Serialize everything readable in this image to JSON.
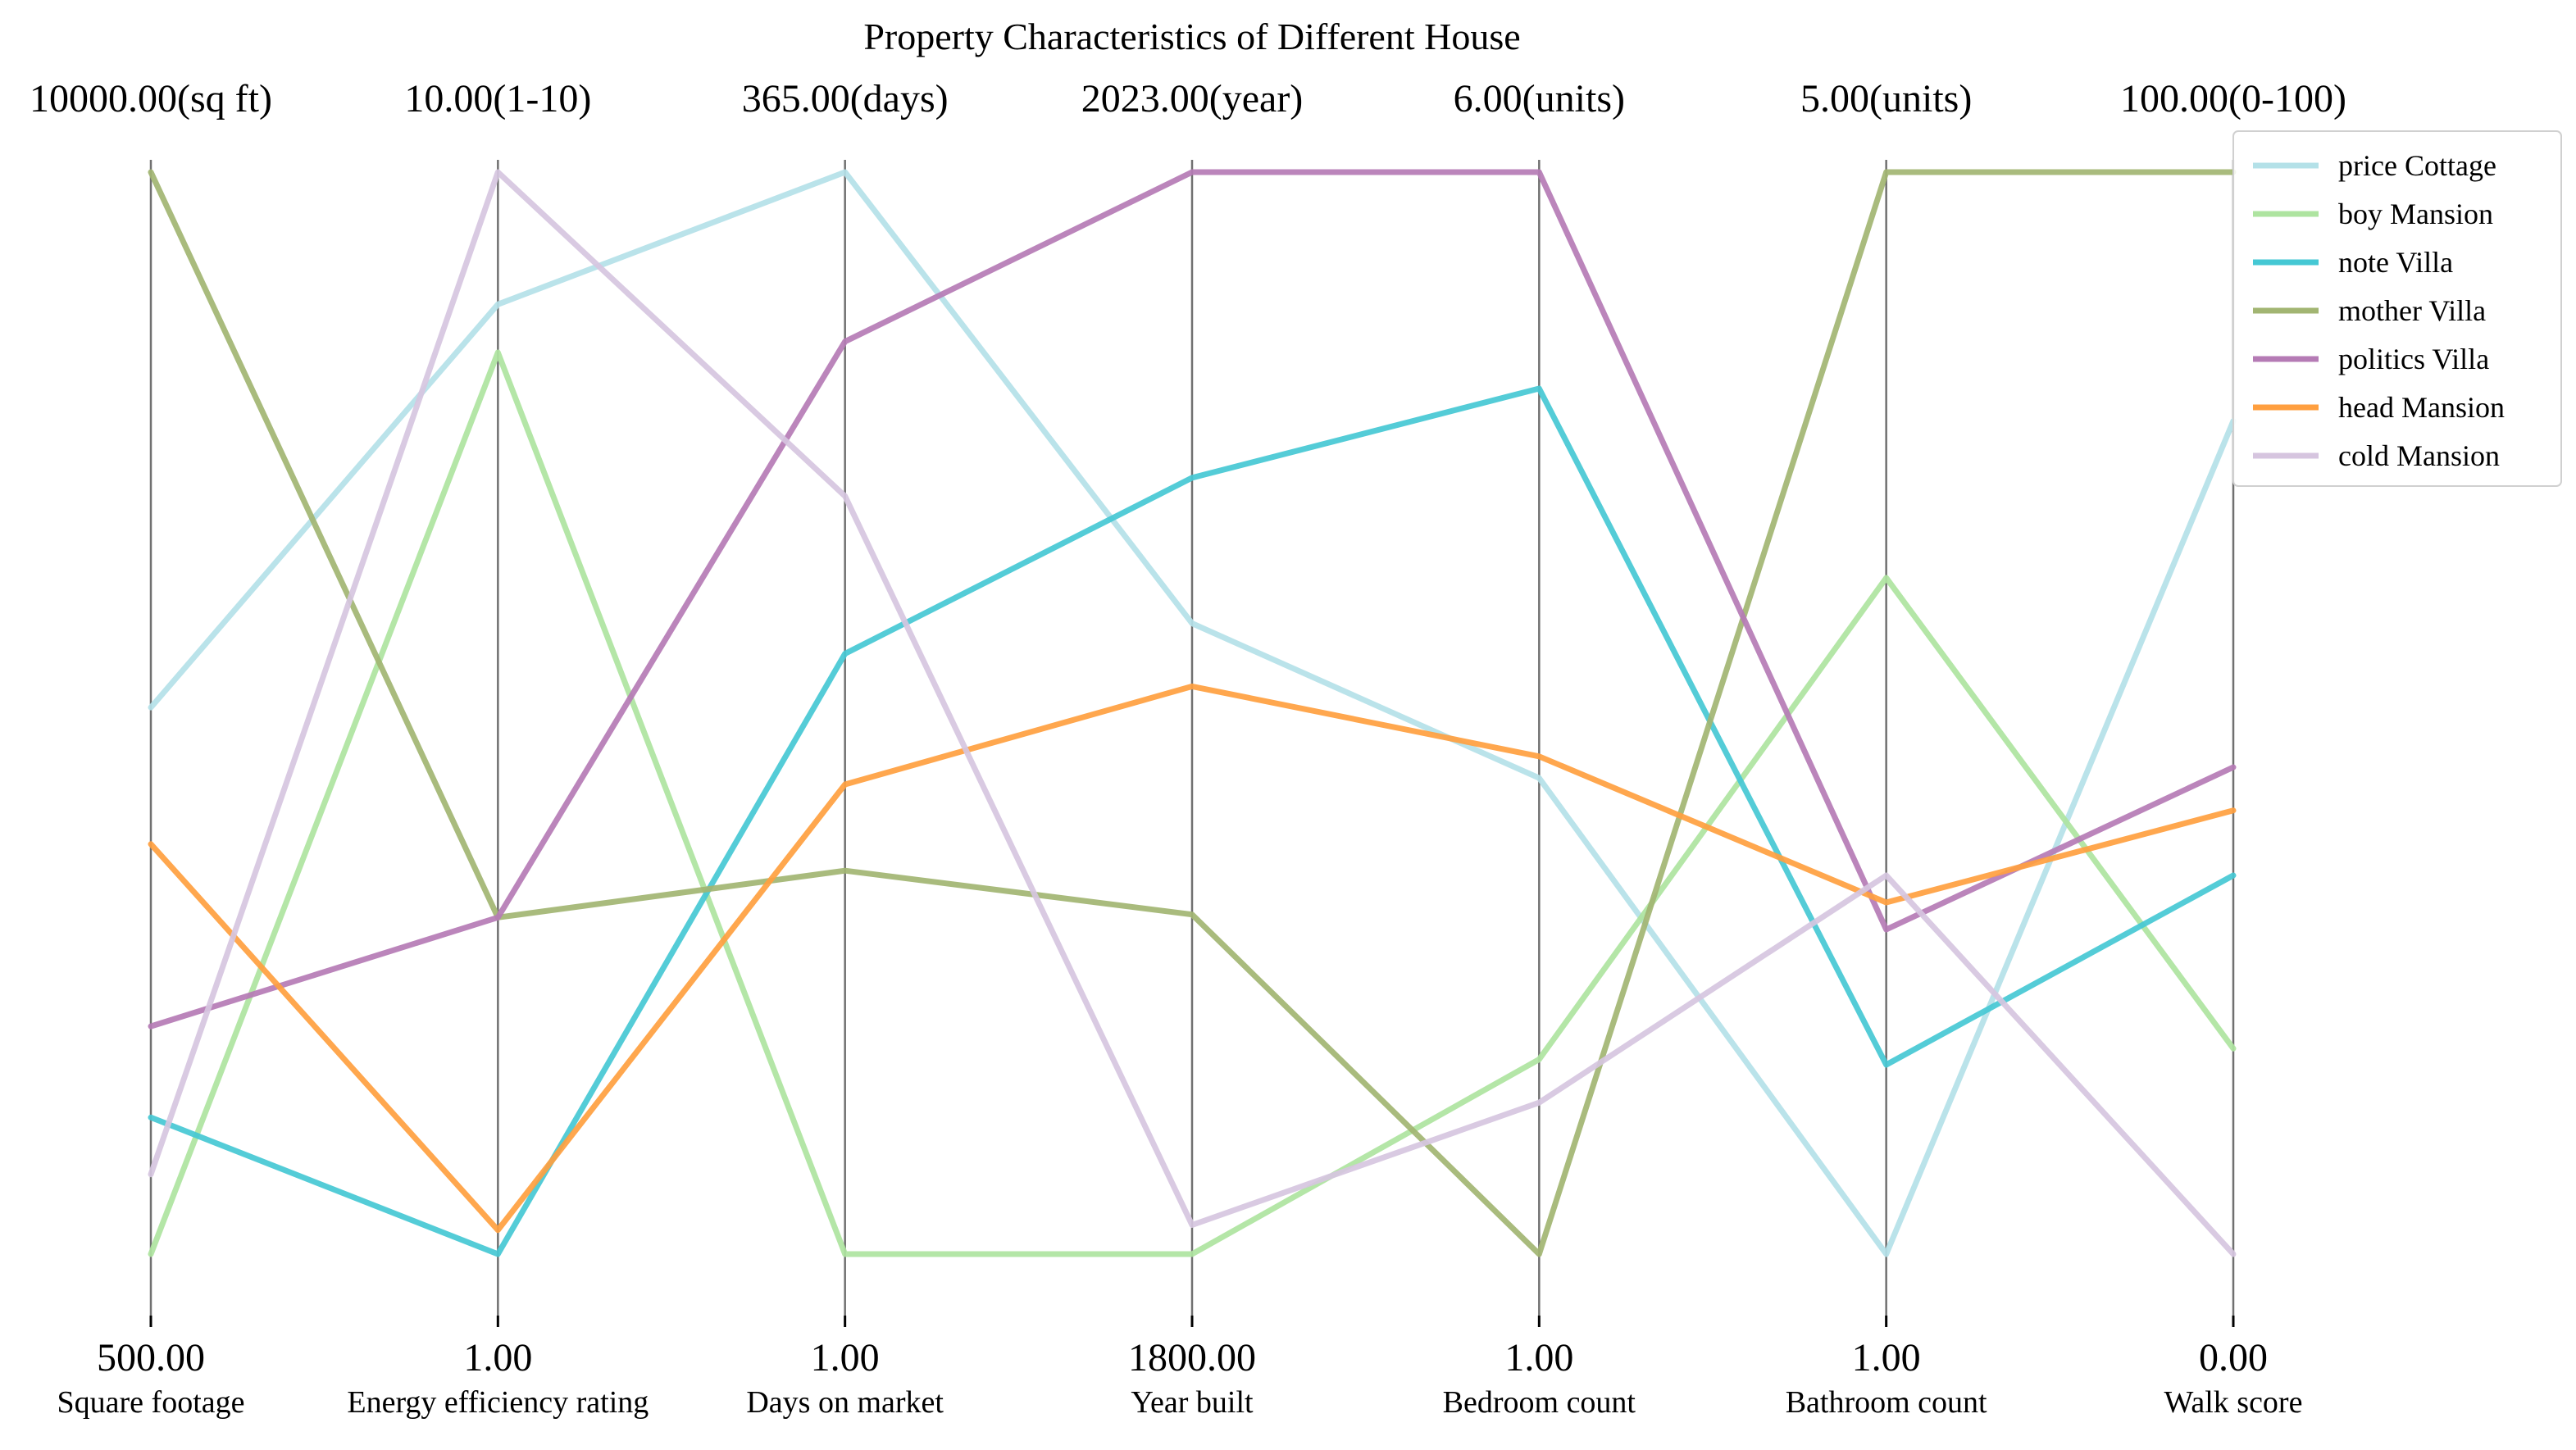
{
  "chart_data": {
    "type": "parallel_coordinates",
    "title": "Property Characteristics of Different House",
    "axes": [
      {
        "name": "Square footage",
        "min": 500,
        "max": 10000,
        "min_label": "500.00",
        "max_label": "10000.00(sq ft)"
      },
      {
        "name": "Energy efficiency rating",
        "min": 1,
        "max": 10,
        "min_label": "1.00",
        "max_label": "10.00(1-10)"
      },
      {
        "name": "Days on market",
        "min": 1,
        "max": 365,
        "min_label": "1.00",
        "max_label": "365.00(days)"
      },
      {
        "name": "Year built",
        "min": 1800,
        "max": 2023,
        "min_label": "1800.00",
        "max_label": "2023.00(year)"
      },
      {
        "name": "Bedroom count",
        "min": 1,
        "max": 6,
        "min_label": "1.00",
        "max_label": "6.00(units)"
      },
      {
        "name": "Bathroom count",
        "min": 1,
        "max": 5,
        "min_label": "1.00",
        "max_label": "5.00(units)"
      },
      {
        "name": "Walk score",
        "min": 0,
        "max": 100,
        "min_label": "0.00",
        "max_label": "100.00(0-100)"
      }
    ],
    "series": [
      {
        "name": "price Cottage",
        "color": "#b4e1e8",
        "values": [
          5300,
          8.9,
          365,
          1930,
          3.2,
          1,
          77
        ]
      },
      {
        "name": "boy Mansion",
        "color": "#aee4a0",
        "values": [
          500,
          8.5,
          1,
          1800,
          1.9,
          3.5,
          19
        ]
      },
      {
        "name": "note Villa",
        "color": "#45c8d4",
        "values": [
          1700,
          1,
          203,
          1960,
          5.0,
          1.7,
          35
        ]
      },
      {
        "name": "mother Villa",
        "color": "#a2b572",
        "values": [
          10000,
          3.8,
          130,
          1870,
          1,
          5,
          100
        ]
      },
      {
        "name": "politics Villa",
        "color": "#b57bb5",
        "values": [
          2500,
          3.8,
          308,
          2023,
          6,
          2.2,
          45
        ]
      },
      {
        "name": "head Mansion",
        "color": "#ff9f3f",
        "values": [
          4100,
          1.2,
          159,
          1917,
          3.3,
          2.3,
          41
        ]
      },
      {
        "name": "cold Mansion",
        "color": "#d6c5df",
        "values": [
          1200,
          10,
          256,
          1806,
          1.7,
          2.4,
          0
        ]
      }
    ],
    "legend_position": "top-right",
    "grid": false
  }
}
